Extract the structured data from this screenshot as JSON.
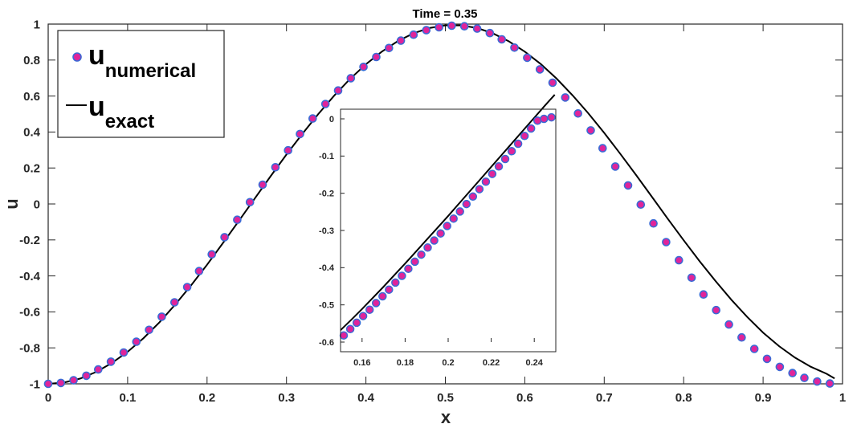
{
  "chart_data": {
    "type": "line",
    "title": "Time = 0.35",
    "xlabel": "x",
    "ylabel": "u",
    "xlim": [
      0,
      1
    ],
    "ylim": [
      -1,
      1
    ],
    "xticks": [
      "0",
      "0.1",
      "0.2",
      "0.3",
      "0.4",
      "0.5",
      "0.6",
      "0.7",
      "0.8",
      "0.9",
      "1"
    ],
    "yticks": [
      "-1",
      "-0.8",
      "-0.6",
      "-0.4",
      "-0.2",
      "0",
      "0.2",
      "0.4",
      "0.6",
      "0.8",
      "1"
    ],
    "grid": false,
    "legend": {
      "position": "top-left",
      "entries": [
        {
          "base": "u",
          "sub": "numerical",
          "marker": "circle"
        },
        {
          "base": "u",
          "sub": "exact",
          "marker": "line"
        }
      ]
    },
    "colors": {
      "marker_fill": "#e0249a",
      "marker_edge": "#3a6bd6",
      "line": "#000000"
    },
    "series": [
      {
        "kind": "markers",
        "x": [
          0.0,
          0.016,
          0.032,
          0.048,
          0.063,
          0.079,
          0.095,
          0.111,
          0.127,
          0.143,
          0.159,
          0.175,
          0.19,
          0.206,
          0.222,
          0.238,
          0.254,
          0.27,
          0.286,
          0.302,
          0.317,
          0.333,
          0.349,
          0.365,
          0.381,
          0.397,
          0.413,
          0.429,
          0.444,
          0.46,
          0.476,
          0.492,
          0.508,
          0.524,
          0.54,
          0.556,
          0.571,
          0.587,
          0.603,
          0.619,
          0.635,
          0.651,
          0.667,
          0.683,
          0.698,
          0.714,
          0.73,
          0.746,
          0.762,
          0.778,
          0.794,
          0.81,
          0.825,
          0.841,
          0.857,
          0.873,
          0.889,
          0.905,
          0.921,
          0.937,
          0.952,
          0.968,
          0.984
        ],
        "y": [
          -1.0,
          -0.995,
          -0.98,
          -0.955,
          -0.92,
          -0.877,
          -0.826,
          -0.766,
          -0.7,
          -0.627,
          -0.547,
          -0.462,
          -0.373,
          -0.28,
          -0.185,
          -0.088,
          0.01,
          0.107,
          0.204,
          0.298,
          0.389,
          0.475,
          0.556,
          0.631,
          0.699,
          0.762,
          0.817,
          0.867,
          0.908,
          0.941,
          0.966,
          0.982,
          0.991,
          0.988,
          0.975,
          0.95,
          0.915,
          0.869,
          0.813,
          0.748,
          0.674,
          0.592,
          0.503,
          0.409,
          0.31,
          0.208,
          0.103,
          -0.003,
          -0.108,
          -0.212,
          -0.313,
          -0.41,
          -0.503,
          -0.59,
          -0.67,
          -0.742,
          -0.806,
          -0.861,
          -0.906,
          -0.94,
          -0.967,
          -0.987,
          -0.998
        ]
      },
      {
        "kind": "line",
        "x": [
          0.0,
          0.02,
          0.04,
          0.06,
          0.08,
          0.1,
          0.12,
          0.14,
          0.16,
          0.18,
          0.2,
          0.22,
          0.24,
          0.26,
          0.28,
          0.3,
          0.32,
          0.34,
          0.36,
          0.38,
          0.4,
          0.42,
          0.44,
          0.46,
          0.48,
          0.5,
          0.52,
          0.54,
          0.56,
          0.58,
          0.6,
          0.62,
          0.64,
          0.66,
          0.68,
          0.7,
          0.72,
          0.74,
          0.76,
          0.78,
          0.8,
          0.82,
          0.84,
          0.86,
          0.88,
          0.9,
          0.92,
          0.94,
          0.96,
          0.98,
          0.99
        ],
        "y": [
          -1.0,
          -0.993,
          -0.971,
          -0.935,
          -0.885,
          -0.822,
          -0.746,
          -0.658,
          -0.559,
          -0.452,
          -0.338,
          -0.217,
          -0.094,
          0.03,
          0.154,
          0.275,
          0.39,
          0.5,
          0.602,
          0.695,
          0.777,
          0.847,
          0.905,
          0.949,
          0.978,
          0.993,
          0.993,
          0.978,
          0.948,
          0.904,
          0.847,
          0.778,
          0.697,
          0.605,
          0.504,
          0.395,
          0.28,
          0.161,
          0.04,
          -0.082,
          -0.202,
          -0.318,
          -0.428,
          -0.532,
          -0.628,
          -0.715,
          -0.79,
          -0.854,
          -0.905,
          -0.944,
          -0.97
        ]
      }
    ],
    "inset": {
      "xlim": [
        0.15,
        0.25
      ],
      "ylim": [
        -0.6,
        0
      ],
      "xticks": [
        "0.16",
        "0.18",
        "0.2",
        "0.22",
        "0.24"
      ],
      "yticks": [
        "-0.6",
        "-0.5",
        "-0.4",
        "-0.3",
        "-0.2",
        "-0.1",
        "0"
      ],
      "series": [
        {
          "kind": "markers",
          "x": [
            0.1515,
            0.1545,
            0.1575,
            0.1605,
            0.1635,
            0.1665,
            0.1695,
            0.1725,
            0.1755,
            0.1785,
            0.1815,
            0.1845,
            0.1875,
            0.1905,
            0.1935,
            0.1965,
            0.1995,
            0.2025,
            0.2055,
            0.2085,
            0.2115,
            0.2145,
            0.2175,
            0.2205,
            0.2235,
            0.2265,
            0.2295,
            0.2325,
            0.2355,
            0.2385,
            0.2415,
            0.2445,
            0.248
          ],
          "y": [
            -0.582,
            -0.565,
            -0.548,
            -0.53,
            -0.513,
            -0.495,
            -0.477,
            -0.459,
            -0.44,
            -0.422,
            -0.403,
            -0.384,
            -0.365,
            -0.346,
            -0.327,
            -0.308,
            -0.288,
            -0.268,
            -0.249,
            -0.229,
            -0.209,
            -0.189,
            -0.169,
            -0.148,
            -0.128,
            -0.108,
            -0.087,
            -0.067,
            -0.046,
            -0.026,
            -0.005,
            0.0,
            0.004
          ]
        },
        {
          "kind": "line",
          "x": [
            0.15,
            0.155,
            0.16,
            0.165,
            0.17,
            0.175,
            0.18,
            0.185,
            0.19,
            0.195,
            0.2,
            0.205,
            0.21,
            0.215,
            0.22,
            0.225,
            0.23,
            0.235,
            0.24,
            0.245,
            0.2495
          ],
          "y": [
            -0.568,
            -0.54,
            -0.511,
            -0.481,
            -0.451,
            -0.42,
            -0.389,
            -0.357,
            -0.325,
            -0.293,
            -0.261,
            -0.228,
            -0.195,
            -0.162,
            -0.129,
            -0.096,
            -0.063,
            -0.03,
            0.003,
            0.036,
            0.065
          ]
        }
      ]
    }
  }
}
